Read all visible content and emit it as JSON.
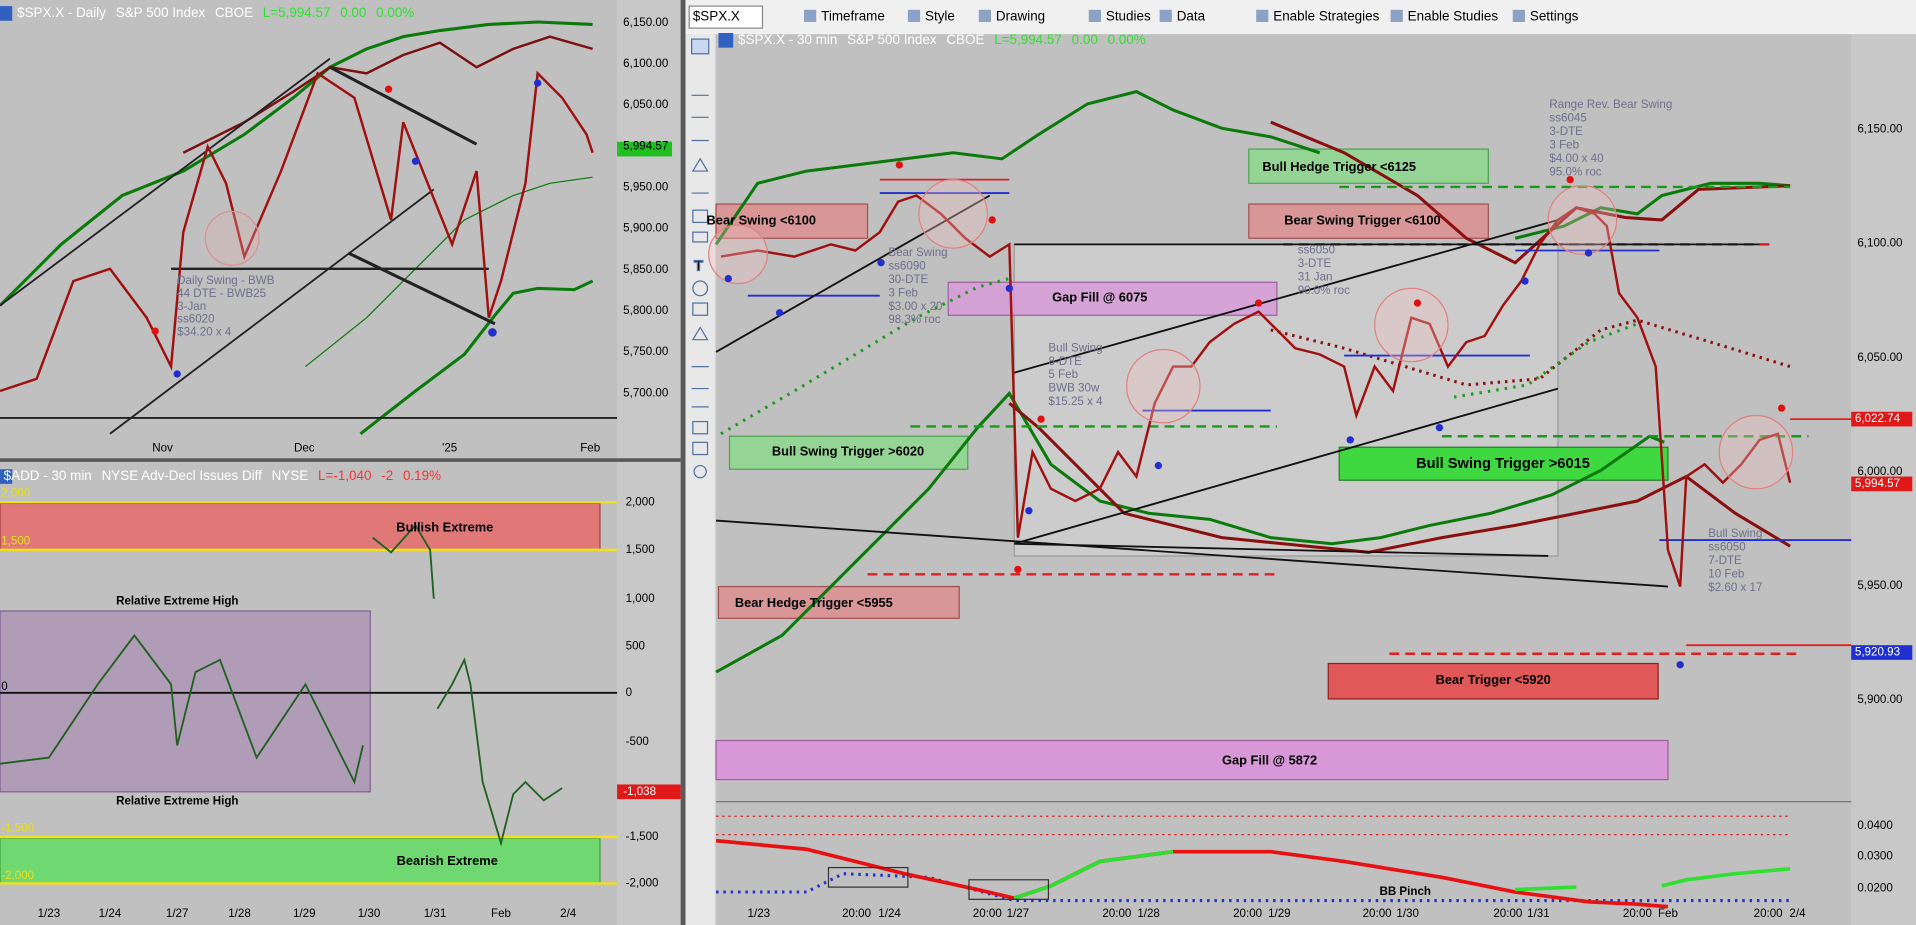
{
  "toolbar": {
    "symbol": "$SPX.X",
    "items": [
      "Timeframe",
      "Style",
      "Drawing",
      "Studies",
      "Data",
      "Enable Strategies",
      "Enable Studies",
      "Settings"
    ]
  },
  "daily_chart": {
    "header": {
      "symbol": "$SPX.X - Daily",
      "name": "S&P 500 Index",
      "exchange": "CBOE",
      "last": "L=5,994.57",
      "change": "0.00",
      "pct": "0.00%"
    },
    "y_labels": [
      "6,150.00",
      "6,100.00",
      "6,050.00",
      "5,994.57",
      "5,950.00",
      "5,900.00",
      "5,850.00",
      "5,800.00",
      "5,750.00",
      "5,700.00"
    ],
    "x_labels": [
      "Nov",
      "Dec",
      "'25",
      "Feb"
    ],
    "note": [
      "Daily Swing - BWB",
      "44 DTE - BWB25",
      "3-Jan",
      "ss6020",
      "$34.20 x 4"
    ]
  },
  "breadth_chart": {
    "header": {
      "symbol": "$ADD - 30 min",
      "name": "NYSE Adv-Decl Issues Diff",
      "exchange": "NYSE",
      "last": "L=-1,040",
      "change": "-2",
      "pct": "0.19%"
    },
    "y_labels": [
      "2,000",
      "1,500",
      "1,000",
      "500",
      "0",
      "-500",
      "-1,500",
      "-2,000"
    ],
    "last_label": "-1,038",
    "left_labels": [
      "2,000",
      "1,500",
      "0",
      "-1,500",
      "-2,000"
    ],
    "x_labels": [
      "1/23",
      "1/24",
      "1/27",
      "1/28",
      "1/29",
      "1/30",
      "1/31",
      "Feb",
      "2/4"
    ],
    "zones": [
      "Bullish Extreme",
      "Bearish Extreme"
    ],
    "zone_notes": [
      "Relative Extreme High",
      "Relative Extreme High"
    ]
  },
  "intraday_chart": {
    "header": {
      "symbol": "$SPX.X - 30 min",
      "name": "S&P 500 Index",
      "exchange": "CBOE",
      "last": "L=5,994.57",
      "change": "0.00",
      "pct": "0.00%"
    },
    "y_labels": [
      "6,150.00",
      "6,100.00",
      "6,050.00",
      "6,000.00",
      "5,950.00",
      "5,900.00"
    ],
    "marker_labels": [
      "6,022.74",
      "5,994.57",
      "5,920.93"
    ],
    "indicator_labels": [
      "0.0400",
      "0.0300",
      "0.0200"
    ],
    "x_labels": [
      "1/23",
      "20:00",
      "1/24",
      "20:00",
      "1/27",
      "20:00",
      "1/28",
      "20:00",
      "1/29",
      "20:00",
      "1/30",
      "20:00",
      "1/31",
      "20:00",
      "Feb",
      "20:00",
      "2/4"
    ],
    "boxes": [
      "Bear Swing <6100",
      "Bull Swing Trigger >6020",
      "Bear Hedge Trigger <5955",
      "Gap Fill @ 6075",
      "Bull Hedge Trigger <6125",
      "Bear Swing Trigger <6100",
      "Bull Swing Trigger >6015",
      "Bear Trigger <5920",
      "Gap Fill @ 5872"
    ],
    "indicator_note": "BB Pinch",
    "notes": [
      [
        "Bear Swing",
        "ss6090",
        "30-DTE",
        "3 Feb",
        "$3.00 x 20",
        "98.3% roc"
      ],
      [
        "Bull Swing",
        "8-DTE",
        "5 Feb",
        "BWB 30w",
        "$15.25 x 4"
      ],
      [
        "ss6050",
        "3-DTE",
        "31 Jan",
        "90.0% roc"
      ],
      [
        "Range Rev. Bear Swing",
        "ss6045",
        "3-DTE",
        "3 Feb",
        "$4.00 x 40",
        "95.0% roc"
      ],
      [
        "Bull Swing",
        "ss6050",
        "7-DTE",
        "10 Feb",
        "$2.60 x 17"
      ]
    ]
  }
}
